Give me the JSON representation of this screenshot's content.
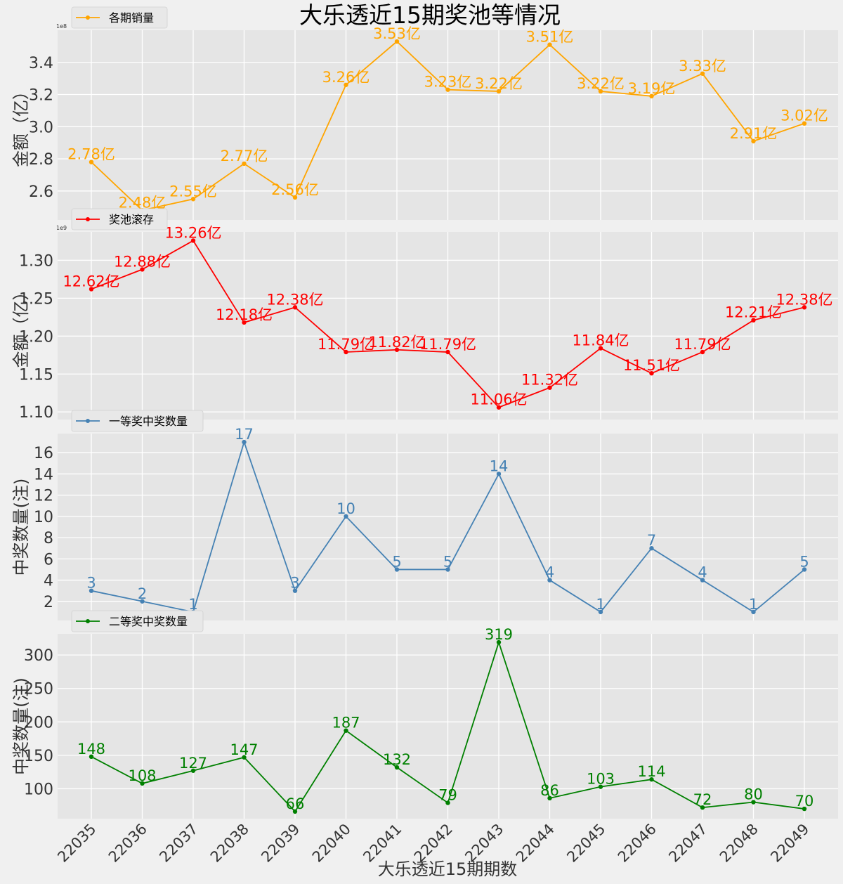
{
  "title": "大乐透近15期奖池等情况",
  "xlabel": "大乐透近15期期数",
  "chart_data": [
    {
      "type": "line",
      "legend": "各期销量",
      "color": "#ffa500",
      "ylabel": "金额（亿）",
      "offset_text": "1e8",
      "ylim": [
        2.42,
        3.6
      ],
      "yticks": [
        2.6,
        2.8,
        3.0,
        3.2,
        3.4
      ],
      "ytick_labels": [
        "2.6",
        "2.8",
        "3.0",
        "3.2",
        "3.4"
      ],
      "categories": [
        "22035",
        "22036",
        "22037",
        "22038",
        "22039",
        "22040",
        "22041",
        "22042",
        "22043",
        "22044",
        "22045",
        "22046",
        "22047",
        "22048",
        "22049"
      ],
      "values": [
        2.78,
        2.48,
        2.55,
        2.77,
        2.56,
        3.26,
        3.53,
        3.23,
        3.22,
        3.51,
        3.22,
        3.19,
        3.33,
        2.91,
        3.02
      ],
      "data_labels": [
        "2.78亿",
        "2.48亿",
        "2.55亿",
        "2.77亿",
        "2.56亿",
        "3.26亿",
        "3.53亿",
        "3.23亿",
        "3.22亿",
        "3.51亿",
        "3.22亿",
        "3.19亿",
        "3.33亿",
        "2.91亿",
        "3.02亿"
      ]
    },
    {
      "type": "line",
      "legend": "奖池滚存",
      "color": "#ff0000",
      "ylabel": "金额（亿）",
      "offset_text": "1e9",
      "ylim": [
        1.09,
        1.3375
      ],
      "yticks": [
        1.1,
        1.15,
        1.2,
        1.25,
        1.3
      ],
      "ytick_labels": [
        "1.10",
        "1.15",
        "1.20",
        "1.25",
        "1.30"
      ],
      "categories": [
        "22035",
        "22036",
        "22037",
        "22038",
        "22039",
        "22040",
        "22041",
        "22042",
        "22043",
        "22044",
        "22045",
        "22046",
        "22047",
        "22048",
        "22049"
      ],
      "values": [
        1.262,
        1.288,
        1.326,
        1.218,
        1.238,
        1.179,
        1.182,
        1.179,
        1.106,
        1.132,
        1.184,
        1.151,
        1.179,
        1.221,
        1.238
      ],
      "data_labels": [
        "12.62亿",
        "12.88亿",
        "13.26亿",
        "12.18亿",
        "12.38亿",
        "11.79亿",
        "11.82亿",
        "11.79亿",
        "11.06亿",
        "11.32亿",
        "11.84亿",
        "11.51亿",
        "11.79亿",
        "12.21亿",
        "12.38亿"
      ]
    },
    {
      "type": "line",
      "legend": "一等奖中奖数量",
      "color": "#4682b4",
      "ylabel": "中奖数量(注)",
      "offset_text": "",
      "ylim": [
        0.2,
        17.8
      ],
      "yticks": [
        2,
        4,
        6,
        8,
        10,
        12,
        14,
        16
      ],
      "ytick_labels": [
        "2",
        "4",
        "6",
        "8",
        "10",
        "12",
        "14",
        "16"
      ],
      "categories": [
        "22035",
        "22036",
        "22037",
        "22038",
        "22039",
        "22040",
        "22041",
        "22042",
        "22043",
        "22044",
        "22045",
        "22046",
        "22047",
        "22048",
        "22049"
      ],
      "values": [
        3,
        2,
        1,
        17,
        3,
        10,
        5,
        5,
        14,
        4,
        1,
        7,
        4,
        1,
        5
      ],
      "data_labels": [
        "3",
        "2",
        "1",
        "17",
        "3",
        "10",
        "5",
        "5",
        "14",
        "4",
        "1",
        "7",
        "4",
        "1",
        "5"
      ]
    },
    {
      "type": "line",
      "legend": "二等奖中奖数量",
      "color": "#008000",
      "ylabel": "中奖数量(注)",
      "offset_text": "",
      "ylim": [
        55.35,
        331.65
      ],
      "yticks": [
        100,
        150,
        200,
        250,
        300
      ],
      "ytick_labels": [
        "100",
        "150",
        "200",
        "250",
        "300"
      ],
      "categories": [
        "22035",
        "22036",
        "22037",
        "22038",
        "22039",
        "22040",
        "22041",
        "22042",
        "22043",
        "22044",
        "22045",
        "22046",
        "22047",
        "22048",
        "22049"
      ],
      "values": [
        148,
        108,
        127,
        147,
        66,
        187,
        132,
        79,
        319,
        86,
        103,
        114,
        72,
        80,
        70
      ],
      "data_labels": [
        "148",
        "108",
        "127",
        "147",
        "66",
        "187",
        "132",
        "79",
        "319",
        "86",
        "103",
        "114",
        "72",
        "80",
        "70"
      ]
    }
  ]
}
